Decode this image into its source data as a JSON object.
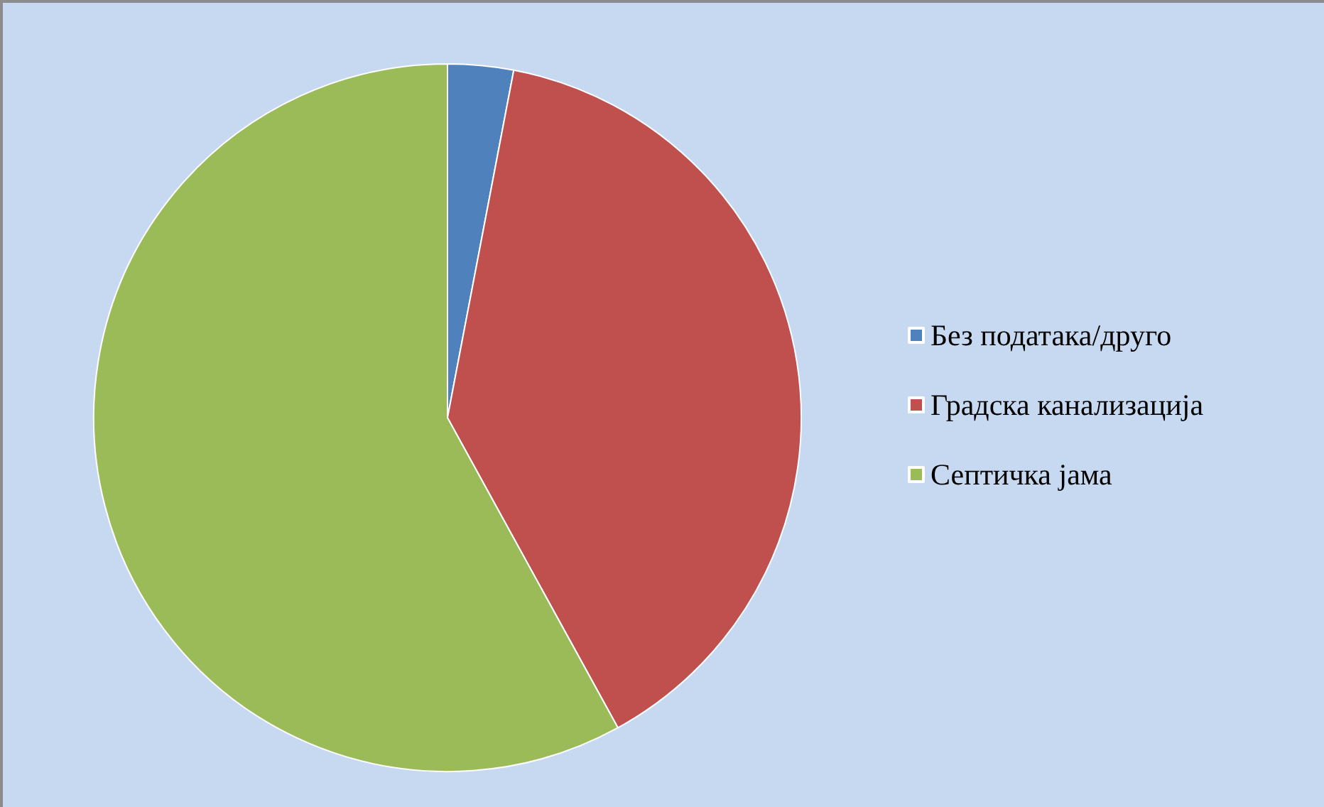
{
  "chart_data": {
    "type": "pie",
    "categories": [
      "Без података/друго",
      "Градска канализација",
      "Септичка јама"
    ],
    "values": [
      3,
      39,
      58
    ],
    "colors": [
      "#4f81bd",
      "#c0504d",
      "#9bbb59"
    ],
    "legend": "right"
  }
}
